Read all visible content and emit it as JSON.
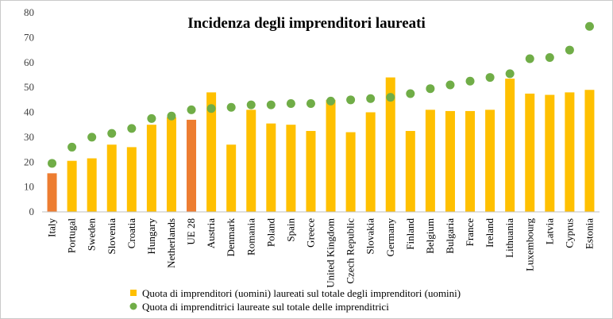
{
  "chart_data": {
    "type": "bar",
    "title": "Incidenza degli imprenditori laureati",
    "xlabel": "",
    "ylabel": "",
    "ylim": [
      0,
      80
    ],
    "yticks": [
      0,
      10,
      20,
      30,
      40,
      50,
      60,
      70,
      80
    ],
    "grid": false,
    "legend_position": "bottom",
    "categories": [
      "Italy",
      "Portugal",
      "Sweden",
      "Slovenia",
      "Croatia",
      "Hungary",
      "Netherlands",
      "UE 28",
      "Austria",
      "Denmark",
      "Romania",
      "Poland",
      "Spain",
      "Greece",
      "United Kingdom",
      "Czech Republic",
      "Slovakia",
      "Germany",
      "Finland",
      "Belgium",
      "Bulgaria",
      "France",
      "Ireland",
      "Lithuania",
      "Luxembourg",
      "Latvia",
      "Cyprus",
      "Estonia"
    ],
    "highlight_categories": [
      "Italy",
      "UE 28"
    ],
    "series": [
      {
        "name": "Quota di imprenditori (uomini) laureati sul totale degli imprenditori (uomini)",
        "kind": "bar",
        "color": "#FFC000",
        "highlight_color": "#ED7D31",
        "values": [
          15.5,
          20.5,
          21.5,
          27,
          26,
          35,
          38,
          37,
          48,
          27,
          41,
          35.5,
          35,
          32.5,
          45,
          32,
          40,
          54,
          32.5,
          41,
          40.5,
          40.5,
          41,
          53.5,
          47.5,
          47,
          48,
          49
        ]
      },
      {
        "name": "Quota di imprenditrici laureate sul totale delle imprenditrici",
        "kind": "scatter",
        "color": "#70AD47",
        "values": [
          19.5,
          26,
          30,
          31.5,
          33.5,
          37.5,
          38.5,
          41,
          41.5,
          42,
          43,
          43,
          43.5,
          43.5,
          44.5,
          45,
          45.5,
          46,
          47.5,
          49.5,
          51,
          52.5,
          54,
          55.5,
          61.5,
          62,
          65,
          74.5
        ]
      }
    ]
  }
}
